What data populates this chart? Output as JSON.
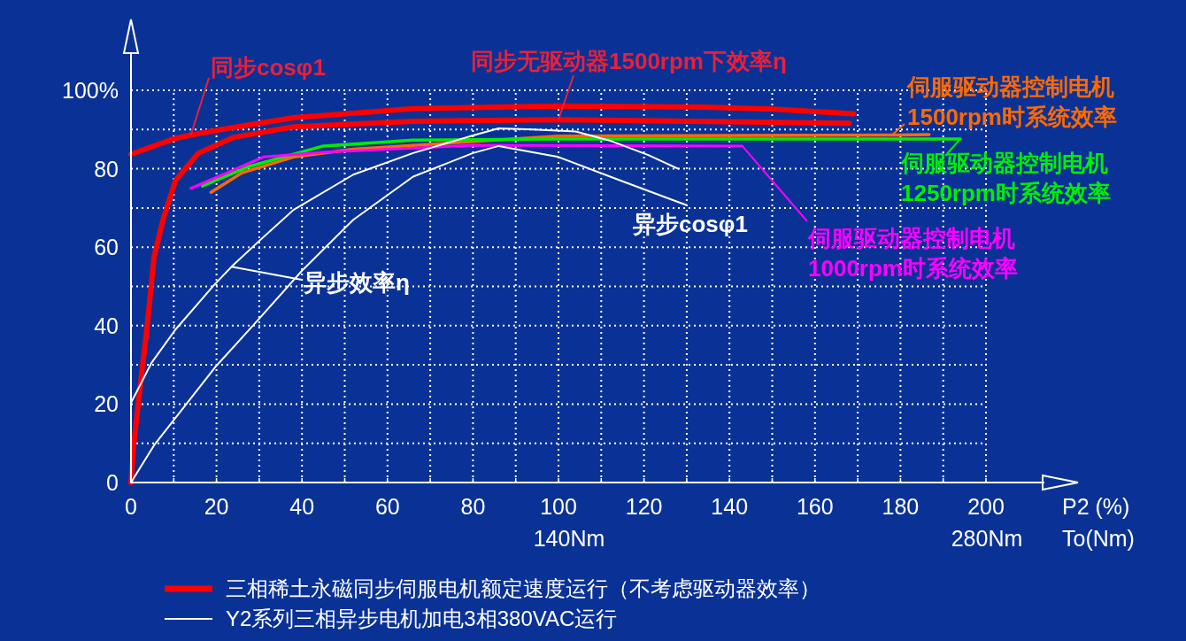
{
  "chart_data": {
    "type": "line",
    "xlabel": "P2 (%)\nTo(Nm)",
    "xlim": [
      0,
      200
    ],
    "ylim": [
      0,
      100
    ],
    "xticks": [
      0,
      {
        "value": 10,
        "label": null
      },
      20,
      {
        "value": 30,
        "label": null
      },
      40,
      {
        "value": 50,
        "label": null
      },
      60,
      {
        "value": 70,
        "label": null
      },
      80,
      {
        "value": 90,
        "label": null
      },
      100,
      {
        "value": 110,
        "label": null
      },
      120,
      {
        "value": 130,
        "label": null
      },
      140,
      {
        "value": 150,
        "label": null
      },
      160,
      {
        "value": 170,
        "label": null
      },
      180,
      {
        "value": 190,
        "label": null
      },
      200
    ],
    "yticks": [
      0,
      {
        "value": 10,
        "label": null
      },
      20,
      {
        "value": 30,
        "label": null
      },
      40,
      {
        "value": 50,
        "label": null
      },
      60,
      {
        "value": 70,
        "label": null
      },
      80,
      {
        "value": 90,
        "label": null
      },
      {
        "value": 100,
        "label": "100%"
      }
    ],
    "grid": true,
    "line_style": "solid",
    "marker": "none",
    "series": [
      {
        "name": "同步cosφ1",
        "color": "#ff0000",
        "x": [
          0,
          10,
          14,
          20,
          38,
          66,
          100,
          134,
          150,
          169
        ],
        "values": [
          83.7,
          87.6,
          88.6,
          89.8,
          93,
          95.3,
          96,
          95.7,
          95.2,
          94
        ]
      },
      {
        "name": "同步无驱动器1500rpm下效率η",
        "color": "#ff0000",
        "x": [
          0,
          0.6,
          1.5,
          2.3,
          3.8,
          5.4,
          7.5,
          10.4,
          15.8,
          24,
          38,
          66,
          100,
          168
        ],
        "values": [
          0,
          9.5,
          18,
          26,
          40,
          57.5,
          67,
          77,
          84,
          88,
          90.7,
          92.1,
          92.5,
          91.6
        ]
      },
      {
        "name": "伺服驱动器控制电机\n1500rpm时系统效率",
        "color": "#ff6a00",
        "x": [
          18.7,
          26,
          38,
          52,
          100,
          178,
          186.7
        ],
        "values": [
          74,
          79,
          83,
          85,
          88.3,
          88.6,
          88.7
        ]
      },
      {
        "name": "伺服驱动器控制电机\n1250rpm时系统效率",
        "color": "#00ee00",
        "x": [
          16.7,
          27.7,
          45,
          66,
          100,
          194
        ],
        "values": [
          75.6,
          80.6,
          85.8,
          87.3,
          87.6,
          87.6
        ]
      },
      {
        "name": "伺服驱动器控制电机\n1000rpm时系统效率",
        "color": "#ff00ff",
        "x": [
          14,
          31,
          45,
          80,
          143
        ],
        "values": [
          75,
          83,
          84.2,
          86,
          85.8
        ]
      },
      {
        "name": "异步效率η",
        "color": "#ffffff",
        "x": [
          0,
          4.8,
          10.4,
          19.4,
          23.5,
          30,
          38,
          52,
          66,
          80,
          86,
          94,
          104,
          112.5,
          121,
          128
        ],
        "values": [
          20.3,
          30.5,
          39,
          50.3,
          55,
          61.6,
          69.5,
          78.5,
          84,
          88.5,
          90.3,
          90,
          89.5,
          87,
          83.5,
          80
        ]
      },
      {
        "name": "异步cosφ1",
        "color": "#ffffff",
        "x": [
          0,
          5.4,
          20,
          30,
          40,
          52,
          66,
          80,
          86,
          100,
          114,
          130
        ],
        "values": [
          0,
          9.5,
          29.8,
          41.8,
          54,
          67,
          78,
          84,
          85.8,
          83,
          77.2,
          70.7
        ]
      }
    ],
    "annotations": [
      "140Nm",
      "280Nm",
      "三相稀土永磁同步伺服电机额定速度运行（不考虑驱动器效率）",
      "Y2系列三相异步电机加电3相380VAC运行"
    ]
  }
}
